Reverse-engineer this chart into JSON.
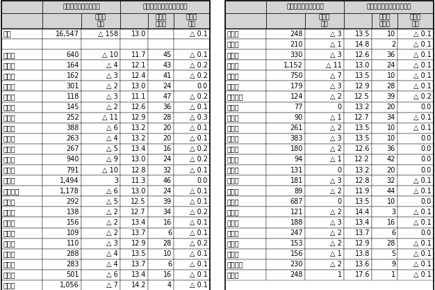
{
  "left_data": [
    [
      "全国",
      "16,547",
      "△ 158",
      "13.0",
      "",
      "△ 0.1"
    ],
    [
      "",
      "",
      "",
      "",
      "",
      ""
    ],
    [
      "北海道",
      "640",
      "△ 10",
      "11.7",
      "45",
      "△ 0.1"
    ],
    [
      "青森県",
      "164",
      "△ 4",
      "12.1",
      "43",
      "△ 0.2"
    ],
    [
      "岩手県",
      "162",
      "△ 3",
      "12.4",
      "41",
      "△ 0.2"
    ],
    [
      "宮城県",
      "301",
      "△ 2",
      "13.0",
      "24",
      "0.0"
    ],
    [
      "秋田県",
      "118",
      "△ 3",
      "11.1",
      "47",
      "△ 0.2"
    ],
    [
      "山形県",
      "145",
      "△ 2",
      "12.6",
      "36",
      "△ 0.1"
    ],
    [
      "福島県",
      "252",
      "△ 11",
      "12.9",
      "28",
      "△ 0.3"
    ],
    [
      "茨城県",
      "388",
      "△ 6",
      "13.2",
      "20",
      "△ 0.1"
    ],
    [
      "栃木県",
      "263",
      "△ 4",
      "13.2",
      "20",
      "△ 0.1"
    ],
    [
      "群馬県",
      "267",
      "△ 5",
      "13.4",
      "16",
      "△ 0.2"
    ],
    [
      "埼玉県",
      "940",
      "△ 9",
      "13.0",
      "24",
      "△ 0.2"
    ],
    [
      "千葉県",
      "791",
      "△ 10",
      "12.8",
      "32",
      "△ 0.1"
    ],
    [
      "東京都",
      "1,494",
      "3",
      "11.3",
      "46",
      "0.0"
    ],
    [
      "神奈川県",
      "1,178",
      "△ 6",
      "13.0",
      "24",
      "△ 0.1"
    ],
    [
      "新潟県",
      "292",
      "△ 5",
      "12.5",
      "39",
      "△ 0.1"
    ],
    [
      "富山県",
      "138",
      "△ 2",
      "12.7",
      "34",
      "△ 0.2"
    ],
    [
      "石川県",
      "156",
      "△ 2",
      "13.4",
      "16",
      "△ 0.1"
    ],
    [
      "福井県",
      "109",
      "△ 2",
      "13.7",
      "6",
      "△ 0.1"
    ],
    [
      "山梨県",
      "110",
      "△ 3",
      "12.9",
      "28",
      "△ 0.2"
    ],
    [
      "長野県",
      "288",
      "△ 4",
      "13.5",
      "10",
      "△ 0.1"
    ],
    [
      "岐阜県",
      "283",
      "△ 4",
      "13.7",
      "6",
      "△ 0.1"
    ],
    [
      "静岡県",
      "501",
      "△ 6",
      "13.4",
      "16",
      "△ 0.1"
    ],
    [
      "愛知県",
      "1,056",
      "△ 7",
      "14.2",
      "4",
      "△ 0.1"
    ]
  ],
  "right_data": [
    [
      "三重県",
      "248",
      "△ 3",
      "13.5",
      "10",
      "△ 0.1"
    ],
    [
      "滋賀県",
      "210",
      "△ 1",
      "14.8",
      "2",
      "△ 0.1"
    ],
    [
      "京都府",
      "330",
      "△ 3",
      "12.6",
      "36",
      "△ 0.1"
    ],
    [
      "大阪府",
      "1,152",
      "△ 11",
      "13.0",
      "24",
      "△ 0.1"
    ],
    [
      "兵庫県",
      "750",
      "△ 7",
      "13.5",
      "10",
      "△ 0.1"
    ],
    [
      "奈良県",
      "179",
      "△ 3",
      "12.9",
      "28",
      "△ 0.1"
    ],
    [
      "和歌山県",
      "124",
      "△ 2",
      "12.5",
      "39",
      "△ 0.2"
    ],
    [
      "鳥取県",
      "77",
      "0",
      "13.2",
      "20",
      "0.0"
    ],
    [
      "島根県",
      "90",
      "△ 1",
      "12.7",
      "34",
      "△ 0.1"
    ],
    [
      "岡山県",
      "261",
      "△ 2",
      "13.5",
      "10",
      "△ 0.1"
    ],
    [
      "広島県",
      "383",
      "△ 3",
      "13.5",
      "10",
      "0.0"
    ],
    [
      "山口県",
      "180",
      "△ 2",
      "12.6",
      "36",
      "0.0"
    ],
    [
      "徳島県",
      "94",
      "△ 1",
      "12.2",
      "42",
      "0.0"
    ],
    [
      "香川県",
      "131",
      "0",
      "13.2",
      "20",
      "0.0"
    ],
    [
      "愛媛県",
      "181",
      "△ 3",
      "12.8",
      "32",
      "△ 0.1"
    ],
    [
      "高知県",
      "89",
      "△ 2",
      "11.9",
      "44",
      "△ 0.1"
    ],
    [
      "福岡県",
      "687",
      "0",
      "13.5",
      "10",
      "0.0"
    ],
    [
      "佐賀県",
      "121",
      "△ 2",
      "14.4",
      "3",
      "△ 0.1"
    ],
    [
      "長崎県",
      "188",
      "△ 3",
      "13.4",
      "16",
      "△ 0.1"
    ],
    [
      "熊本県",
      "247",
      "△ 2",
      "13.7",
      "6",
      "0.0"
    ],
    [
      "大分県",
      "153",
      "△ 2",
      "12.9",
      "28",
      "△ 0.1"
    ],
    [
      "宮崎県",
      "156",
      "△ 1",
      "13.8",
      "5",
      "△ 0.1"
    ],
    [
      "鹿児島県",
      "230",
      "△ 2",
      "13.6",
      "9",
      "△ 0.1"
    ],
    [
      "沖縄県",
      "248",
      "1",
      "17.6",
      "1",
      "△ 0.1"
    ]
  ],
  "hdr1_left": "こどもの人口（千人）",
  "hdr1_right": "こどもの人口の割合（％）",
  "subhdr_change": "対前年\n増減",
  "subhdr_rank": "割合の\n高い順",
  "header_bg": "#d4d4d4",
  "white": "#ffffff",
  "border_color": "#000000"
}
